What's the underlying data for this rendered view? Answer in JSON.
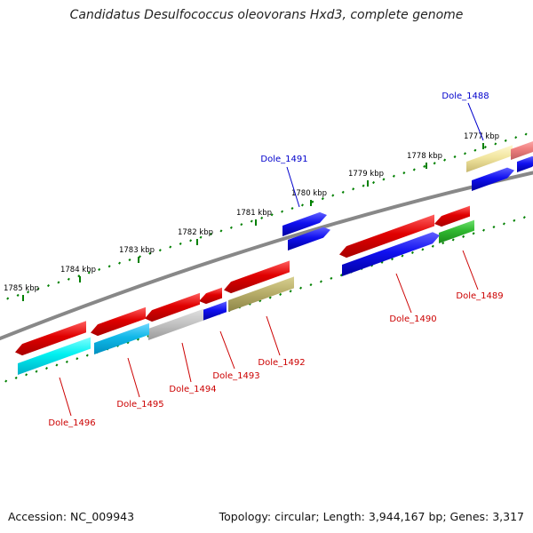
{
  "title": "Candidatus Desulfococcus oleovorans Hxd3, complete genome",
  "footer": {
    "accession": "Accession: NC_009943",
    "summary": "Topology: circular; Length: 3,944,167 bp; Genes: 3,317"
  },
  "colors": {
    "backbone": "#888888",
    "ticks": "#008000",
    "tick_label": "#000000",
    "top_gene_label": "#0000cc",
    "bottom_gene_label": "#cc0000"
  },
  "ruler_labels": [
    "1777 kbp",
    "1778 kbp",
    "1779 kbp",
    "1780 kbp",
    "1781 kbp",
    "1782 kbp",
    "1783 kbp",
    "1784 kbp",
    "1785 kbp"
  ],
  "gene_labels_top": [
    "Dole_1488",
    "Dole_1491"
  ],
  "gene_labels_bottom": [
    "Dole_1489",
    "Dole_1490",
    "Dole_1492",
    "Dole_1493",
    "Dole_1494",
    "Dole_1495",
    "Dole_1496"
  ]
}
